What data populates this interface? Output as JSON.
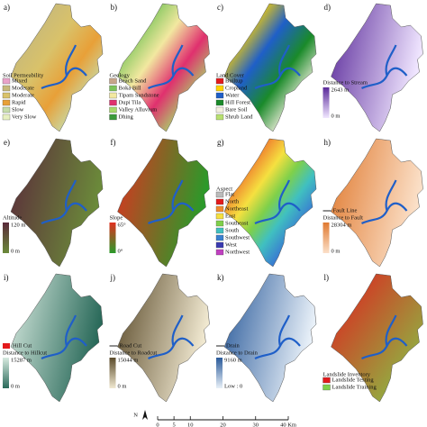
{
  "panels": [
    {
      "label": "a)",
      "legend_title": "Soil Permeability",
      "items": [
        {
          "name": "Mixed",
          "color": "#e9a3c9"
        },
        {
          "name": "Moderate",
          "color": "#c7b97a"
        },
        {
          "name": "Moderate",
          "color": "#d9c26a"
        },
        {
          "name": "Rapid",
          "color": "#e8a038"
        },
        {
          "name": "Slow",
          "color": "#c6dcaa"
        },
        {
          "name": "Very Slow",
          "color": "#e7f0c0"
        }
      ]
    },
    {
      "label": "b)",
      "legend_title": "Geology",
      "items": [
        {
          "name": "Beach Sand",
          "color": "#c7a58a"
        },
        {
          "name": "Boka Bill",
          "color": "#7cc45a"
        },
        {
          "name": "Tipam Sandstone",
          "color": "#f2e8a0"
        },
        {
          "name": "Dupi Tila",
          "color": "#e0306e"
        },
        {
          "name": "Valley Alluvium",
          "color": "#a7d96a"
        },
        {
          "name": "Dhing",
          "color": "#3a9a3a"
        }
      ]
    },
    {
      "label": "c)",
      "legend_title": "Land Cover",
      "items": [
        {
          "name": "Builtup",
          "color": "#e31a1c"
        },
        {
          "name": "Cropland",
          "color": "#ffd400"
        },
        {
          "name": "Water",
          "color": "#1f5fc8"
        },
        {
          "name": "Hill Forest",
          "color": "#1a8a2a"
        },
        {
          "name": "Bare Soil",
          "color": "#f4f0e0"
        },
        {
          "name": "Shrub Land",
          "color": "#b8e070"
        }
      ]
    },
    {
      "label": "d)",
      "legend_title": "Distance to Stream",
      "high": "2643 m",
      "low": "0 m",
      "ramp": [
        "#f0e6ff",
        "#5a2a9a"
      ]
    },
    {
      "label": "e)",
      "legend_title": "Altitude",
      "high": "120 m",
      "low": "0 m",
      "ramp": [
        "#6b8a3a",
        "#5a2a3a"
      ]
    },
    {
      "label": "f)",
      "legend_title": "Slope",
      "high": "65°",
      "low": "0°",
      "ramp": [
        "#2a9a2a",
        "#e03020"
      ]
    },
    {
      "label": "g)",
      "legend_title": "Aspect",
      "items": [
        {
          "name": "Flat",
          "color": "#bbbbbb"
        },
        {
          "name": "North",
          "color": "#e31a1c"
        },
        {
          "name": "Northeast",
          "color": "#f08a30"
        },
        {
          "name": "East",
          "color": "#f5e040"
        },
        {
          "name": "Southeast",
          "color": "#7fd04a"
        },
        {
          "name": "South",
          "color": "#40c0c0"
        },
        {
          "name": "Southwest",
          "color": "#3a80d0"
        },
        {
          "name": "West",
          "color": "#3a3ab0"
        },
        {
          "name": "Northwest",
          "color": "#c040c0"
        }
      ]
    },
    {
      "label": "h)",
      "line_item": "Fault Line",
      "legend_title": "Distance to Fault",
      "high": "28304 m",
      "low": "0 m",
      "ramp": [
        "#fbe0c8",
        "#e07a30"
      ]
    },
    {
      "label": "i)",
      "swatch_item": {
        "name": "Hill Cut",
        "color": "#e31a1c"
      },
      "legend_title": "Distance to Hillcut",
      "high": "15287 m",
      "low": "0 m",
      "ramp": [
        "#2a6a5a",
        "#d8eae0"
      ]
    },
    {
      "label": "j)",
      "line_item": "Road Cut",
      "legend_title": "Distance to Roadcut",
      "high": "15044 m",
      "low": "0 m",
      "ramp": [
        "#f0e8d0",
        "#5a4a2a"
      ]
    },
    {
      "label": "k)",
      "line_item": "Drain",
      "legend_title": "Distance to Drain",
      "high": "9160 m",
      "low": "Low : 0",
      "ramp": [
        "#e8f0f8",
        "#2a5a9a"
      ]
    },
    {
      "label": "l)",
      "legend_title": "Landslide Inventory",
      "items": [
        {
          "name": "Landslide Testing",
          "color": "#e31a1c"
        },
        {
          "name": "Landslide Training",
          "color": "#7fd04a"
        }
      ]
    }
  ],
  "scale_bar": {
    "north": "N",
    "ticks": [
      0,
      5,
      10,
      20,
      30,
      {
        "value": 40,
        "label": "40 Km"
      }
    ]
  }
}
